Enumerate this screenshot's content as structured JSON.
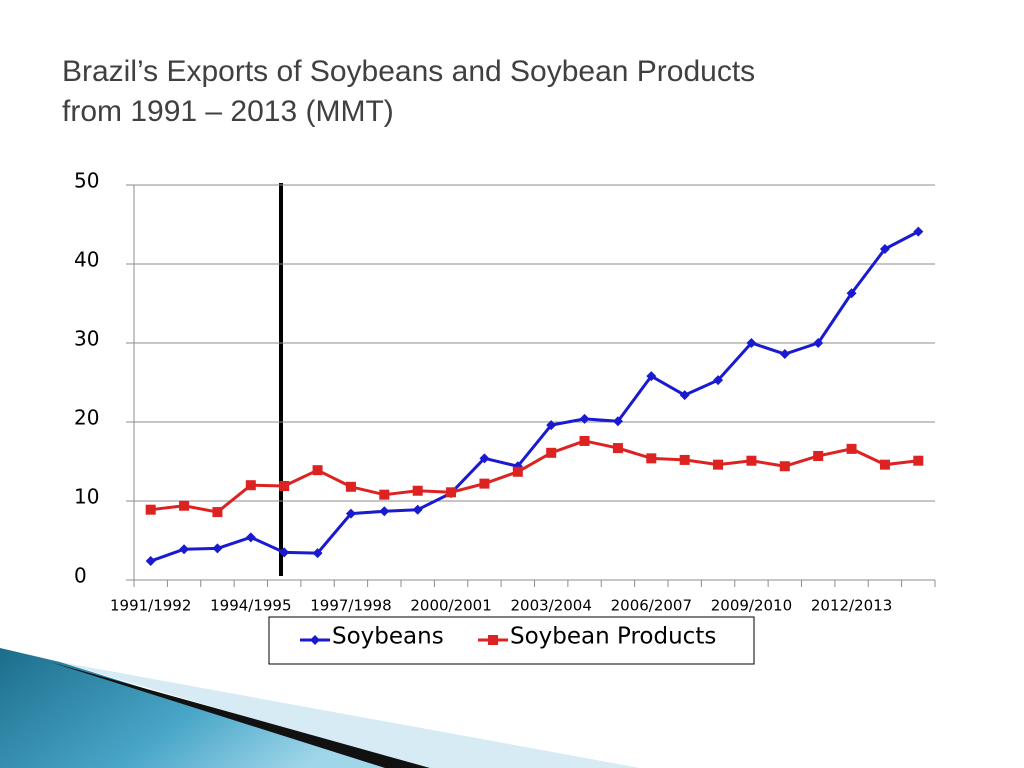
{
  "chart_data": {
    "type": "line",
    "title": [
      "Brazil’s Exports of Soybeans and Soybean Products",
      "from 1991 – 2013 (MMT)"
    ],
    "categories": [
      "1991/1992",
      null,
      null,
      "1994/1995",
      null,
      null,
      "1997/1998",
      null,
      null,
      "2000/2001",
      null,
      null,
      "2003/2004",
      null,
      null,
      "2006/2007",
      null,
      null,
      "2009/2010",
      null,
      null,
      "2012/2013",
      null,
      null
    ],
    "series": [
      {
        "name": "Soybeans",
        "color": "#1a1ad0",
        "marker": "diamond",
        "values": [
          2.4,
          3.9,
          4.0,
          5.4,
          3.5,
          3.4,
          8.4,
          8.7,
          8.9,
          11.0,
          15.4,
          14.4,
          19.6,
          20.4,
          20.1,
          25.8,
          23.4,
          25.3,
          30.0,
          28.6,
          30.0,
          36.3,
          41.9,
          44.1
        ]
      },
      {
        "name": "Soybean Products",
        "color": "#dd2222",
        "marker": "square",
        "values": [
          8.9,
          9.4,
          8.6,
          12.0,
          11.9,
          13.9,
          11.8,
          10.8,
          11.3,
          11.1,
          12.2,
          13.7,
          16.1,
          17.6,
          16.7,
          15.4,
          15.2,
          14.6,
          15.1,
          14.4,
          15.7,
          16.6,
          14.6,
          15.1
        ]
      }
    ],
    "ylim": [
      0,
      50
    ],
    "yticks": [
      0,
      10,
      20,
      30,
      40,
      50
    ],
    "grid": true,
    "legend": "bottom"
  }
}
